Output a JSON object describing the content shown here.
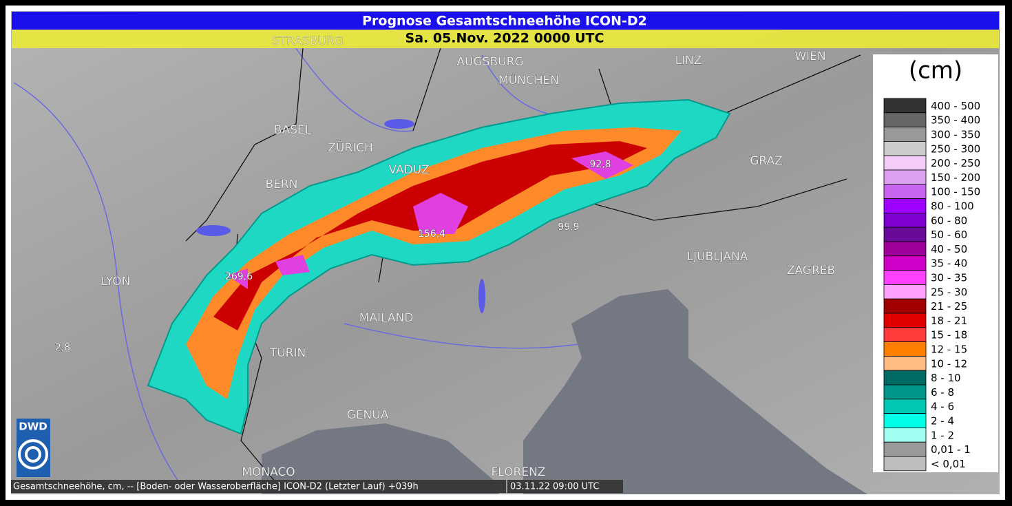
{
  "header": {
    "title": "Prognose Gesamtschneehöhe ICON-D2",
    "subtitle": "Sa. 05.Nov. 2022 0000 UTC"
  },
  "cities": [
    "STRASBURG",
    "AUGSBURG",
    "MÜNCHEN",
    "LINZ",
    "WIEN",
    "BASEL",
    "ZÜRICH",
    "VADUZ",
    "BERN",
    "GRAZ",
    "LJUBLJANA",
    "ZAGREB",
    "LYON",
    "MAILAND",
    "TURIN",
    "GENUA",
    "MONACO",
    "FLORENZ"
  ],
  "point_values": [
    "92,8",
    "99,9",
    "156,4",
    "269,6",
    "2,8"
  ],
  "legend": {
    "unit": "(cm)",
    "entries": [
      {
        "label": "400 - 500",
        "color": "#333333"
      },
      {
        "label": "350 - 400",
        "color": "#666666"
      },
      {
        "label": "300 - 350",
        "color": "#999999"
      },
      {
        "label": "250 - 300",
        "color": "#cccccc"
      },
      {
        "label": "200 - 250",
        "color": "#f4cdf8"
      },
      {
        "label": "150 - 200",
        "color": "#dca0f0"
      },
      {
        "label": "100 - 150",
        "color": "#c864f0"
      },
      {
        "label": "80 - 100",
        "color": "#a000ff"
      },
      {
        "label": "60 - 80",
        "color": "#8000d0"
      },
      {
        "label": "50 - 60",
        "color": "#6a0a9a"
      },
      {
        "label": "40 - 50",
        "color": "#a0009a"
      },
      {
        "label": "35 - 40",
        "color": "#d000c8"
      },
      {
        "label": "30 - 35",
        "color": "#ff40ff"
      },
      {
        "label": "25 - 30",
        "color": "#ffa0ff"
      },
      {
        "label": "21 - 25",
        "color": "#a00000"
      },
      {
        "label": "18 - 21",
        "color": "#e00000"
      },
      {
        "label": "15 - 18",
        "color": "#ff3c3c"
      },
      {
        "label": "12 - 15",
        "color": "#ff8000"
      },
      {
        "label": "10 - 12",
        "color": "#ffbb80"
      },
      {
        "label": "8 - 10",
        "color": "#006a64"
      },
      {
        "label": "6 - 8",
        "color": "#00968c"
      },
      {
        "label": "4 - 6",
        "color": "#00c8b4"
      },
      {
        "label": "2 - 4",
        "color": "#00ffe6"
      },
      {
        "label": "1 - 2",
        "color": "#a0fff0"
      },
      {
        "label": "0,01 - 1",
        "color": "#9a9a9a"
      },
      {
        "label": "< 0,01",
        "color": "#bdbdbd"
      }
    ]
  },
  "footer": {
    "description": "Gesamtschneehöhe, cm, -- [Boden- oder Wasseroberfläche] ICON-D2 (Letzter Lauf) +039h",
    "run_time": "03.11.22 09:00 UTC"
  },
  "logo": "DWD"
}
